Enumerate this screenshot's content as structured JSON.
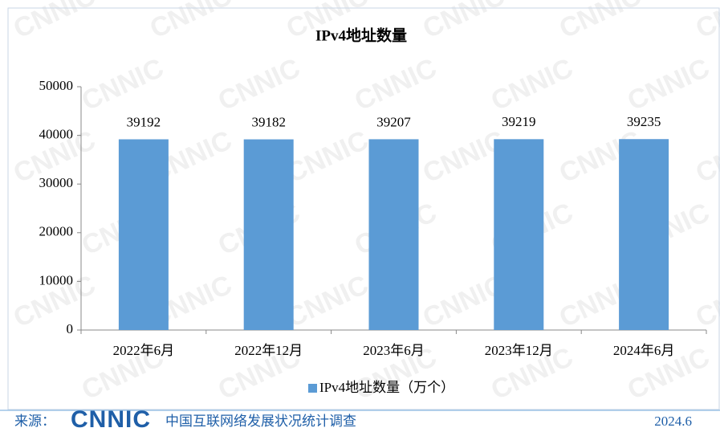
{
  "watermark": "CNNIC",
  "chart_data": {
    "type": "bar",
    "title": "IPv4地址数量",
    "categories": [
      "2022年6月",
      "2022年12月",
      "2023年6月",
      "2023年12月",
      "2024年6月"
    ],
    "series": [
      {
        "name": "IPv4地址数量（万个）",
        "color": "#5b9bd5",
        "values": [
          39192,
          39182,
          39207,
          39219,
          39235
        ]
      }
    ],
    "ylim": [
      0,
      50000
    ],
    "yticks": [
      0,
      10000,
      20000,
      30000,
      40000,
      50000
    ],
    "grid": false
  },
  "footer": {
    "source_label": "来源：",
    "logo": "CNNIC",
    "org": "中国互联网络发展状况统计调查",
    "date": "2024.6"
  }
}
